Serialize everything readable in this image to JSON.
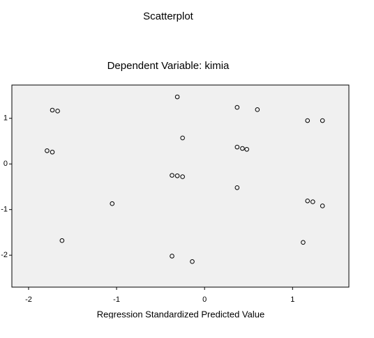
{
  "chart_data": {
    "type": "scatter",
    "title": "Scatterplot",
    "subtitle": "Dependent Variable: kimia",
    "x_label": "Regression Standardized Predicted Value",
    "xlim": [
      -2.19,
      1.64
    ],
    "ylim": [
      -2.7,
      1.73
    ],
    "xticks": [
      -2,
      -1,
      0,
      1
    ],
    "yticks": [
      1,
      0,
      -1,
      -2
    ],
    "x": [
      -0.31,
      -1.73,
      -1.67,
      0.37,
      0.6,
      1.17,
      1.34,
      -0.25,
      -1.79,
      -1.73,
      0.37,
      0.43,
      0.48,
      -0.37,
      -0.31,
      -0.25,
      0.37,
      -1.05,
      1.17,
      1.23,
      1.34,
      -1.62,
      1.12,
      -0.37,
      -0.14
    ],
    "values": [
      1.47,
      1.18,
      1.16,
      1.24,
      1.19,
      0.95,
      0.95,
      0.57,
      0.29,
      0.26,
      0.37,
      0.34,
      0.32,
      -0.25,
      -0.26,
      -0.28,
      -0.52,
      -0.87,
      -0.81,
      -0.83,
      -0.92,
      -1.68,
      -1.72,
      -2.02,
      -2.14
    ],
    "color": "#000000",
    "background": "#f0f0f0"
  }
}
